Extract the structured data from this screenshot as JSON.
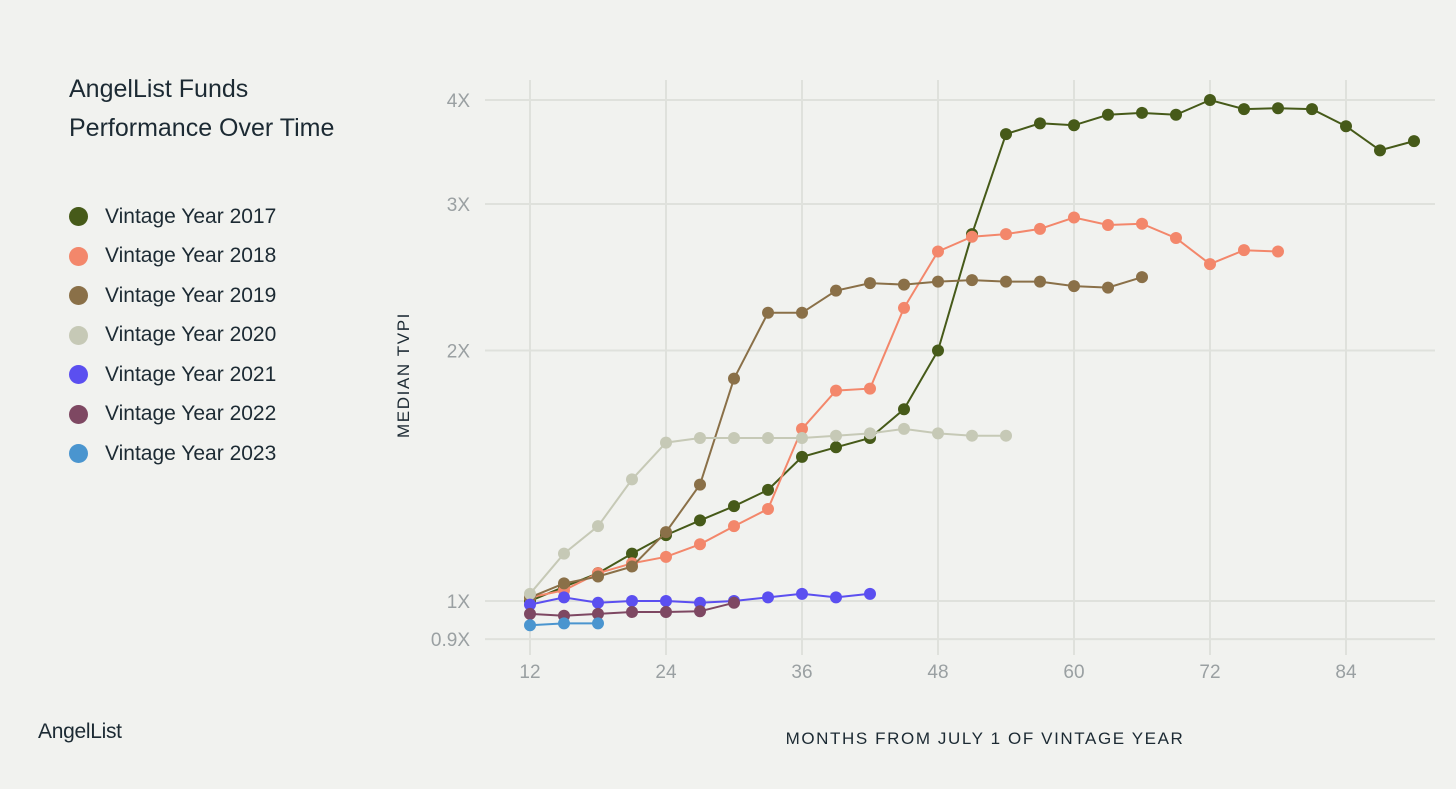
{
  "title": "AngelList Funds\nPerformance Over Time",
  "brand": "AngelList",
  "legend": [
    {
      "label": "Vintage Year 2017",
      "color": "#465a19"
    },
    {
      "label": "Vintage Year 2018",
      "color": "#f3876b"
    },
    {
      "label": "Vintage Year 2019",
      "color": "#8a7048"
    },
    {
      "label": "Vintage Year 2020",
      "color": "#c6c9b6"
    },
    {
      "label": "Vintage Year 2021",
      "color": "#5b4ff0"
    },
    {
      "label": "Vintage Year 2022",
      "color": "#7e4862"
    },
    {
      "label": "Vintage Year 2023",
      "color": "#4a95cf"
    }
  ],
  "chart_data": {
    "type": "line",
    "xlabel": "MONTHS FROM JULY 1 OF VINTAGE YEAR",
    "ylabel": "MEDIAN TVPI",
    "x_ticks": [
      12,
      24,
      36,
      48,
      60,
      72,
      84
    ],
    "y_scale": "log",
    "y_ticks": [
      {
        "value": 0.9,
        "label": "0.9X"
      },
      {
        "value": 1,
        "label": "1X"
      },
      {
        "value": 2,
        "label": "2X"
      },
      {
        "value": 3,
        "label": "3X"
      },
      {
        "value": 4,
        "label": "4X"
      }
    ],
    "xlim": [
      8,
      90
    ],
    "ylim": [
      0.87,
      4.15
    ],
    "grid": true,
    "series": [
      {
        "name": "Vintage Year 2017",
        "color": "#465a19",
        "x": [
          12,
          15,
          18,
          21,
          24,
          27,
          30,
          33,
          36,
          39,
          42,
          45,
          48,
          51,
          54,
          57,
          60,
          63,
          66,
          69,
          72,
          75,
          78,
          81,
          84,
          87,
          90
        ],
        "y": [
          1.0,
          1.04,
          1.08,
          1.14,
          1.2,
          1.25,
          1.3,
          1.36,
          1.49,
          1.53,
          1.57,
          1.7,
          2.0,
          2.76,
          3.64,
          3.75,
          3.73,
          3.84,
          3.86,
          3.84,
          4.0,
          3.9,
          3.91,
          3.9,
          3.72,
          3.48,
          3.57
        ]
      },
      {
        "name": "Vintage Year 2018",
        "color": "#f3876b",
        "x": [
          12,
          15,
          18,
          21,
          24,
          27,
          30,
          33,
          36,
          39,
          42,
          45,
          48,
          51,
          54,
          57,
          60,
          63,
          66,
          69,
          72,
          75,
          78
        ],
        "y": [
          1.01,
          1.03,
          1.08,
          1.11,
          1.13,
          1.17,
          1.23,
          1.29,
          1.61,
          1.79,
          1.8,
          2.25,
          2.63,
          2.74,
          2.76,
          2.8,
          2.89,
          2.83,
          2.84,
          2.73,
          2.54,
          2.64,
          2.63
        ]
      },
      {
        "name": "Vintage Year 2019",
        "color": "#8a7048",
        "x": [
          12,
          15,
          18,
          21,
          24,
          27,
          30,
          33,
          36,
          39,
          42,
          45,
          48,
          51,
          54,
          57,
          60,
          63,
          66
        ],
        "y": [
          1.01,
          1.05,
          1.07,
          1.1,
          1.21,
          1.38,
          1.85,
          2.22,
          2.22,
          2.36,
          2.41,
          2.4,
          2.42,
          2.43,
          2.42,
          2.42,
          2.39,
          2.38,
          2.45
        ]
      },
      {
        "name": "Vintage Year 2020",
        "color": "#c6c9b6",
        "x": [
          12,
          15,
          18,
          21,
          24,
          27,
          30,
          33,
          36,
          39,
          42,
          45,
          48,
          51,
          54
        ],
        "y": [
          1.02,
          1.14,
          1.23,
          1.4,
          1.55,
          1.57,
          1.57,
          1.57,
          1.57,
          1.58,
          1.59,
          1.61,
          1.59,
          1.58,
          1.58
        ]
      },
      {
        "name": "Vintage Year 2021",
        "color": "#5b4ff0",
        "x": [
          12,
          15,
          18,
          21,
          24,
          27,
          30,
          33,
          36,
          39,
          42
        ],
        "y": [
          0.99,
          1.01,
          0.995,
          1.0,
          1.0,
          0.995,
          1.0,
          1.01,
          1.02,
          1.01,
          1.02
        ]
      },
      {
        "name": "Vintage Year 2022",
        "color": "#7e4862",
        "x": [
          12,
          15,
          18,
          21,
          24,
          27,
          30
        ],
        "y": [
          0.965,
          0.96,
          0.965,
          0.97,
          0.97,
          0.972,
          0.995
        ]
      },
      {
        "name": "Vintage Year 2023",
        "color": "#4a95cf",
        "x": [
          12,
          15,
          18
        ],
        "y": [
          0.935,
          0.94,
          0.94
        ]
      }
    ]
  }
}
